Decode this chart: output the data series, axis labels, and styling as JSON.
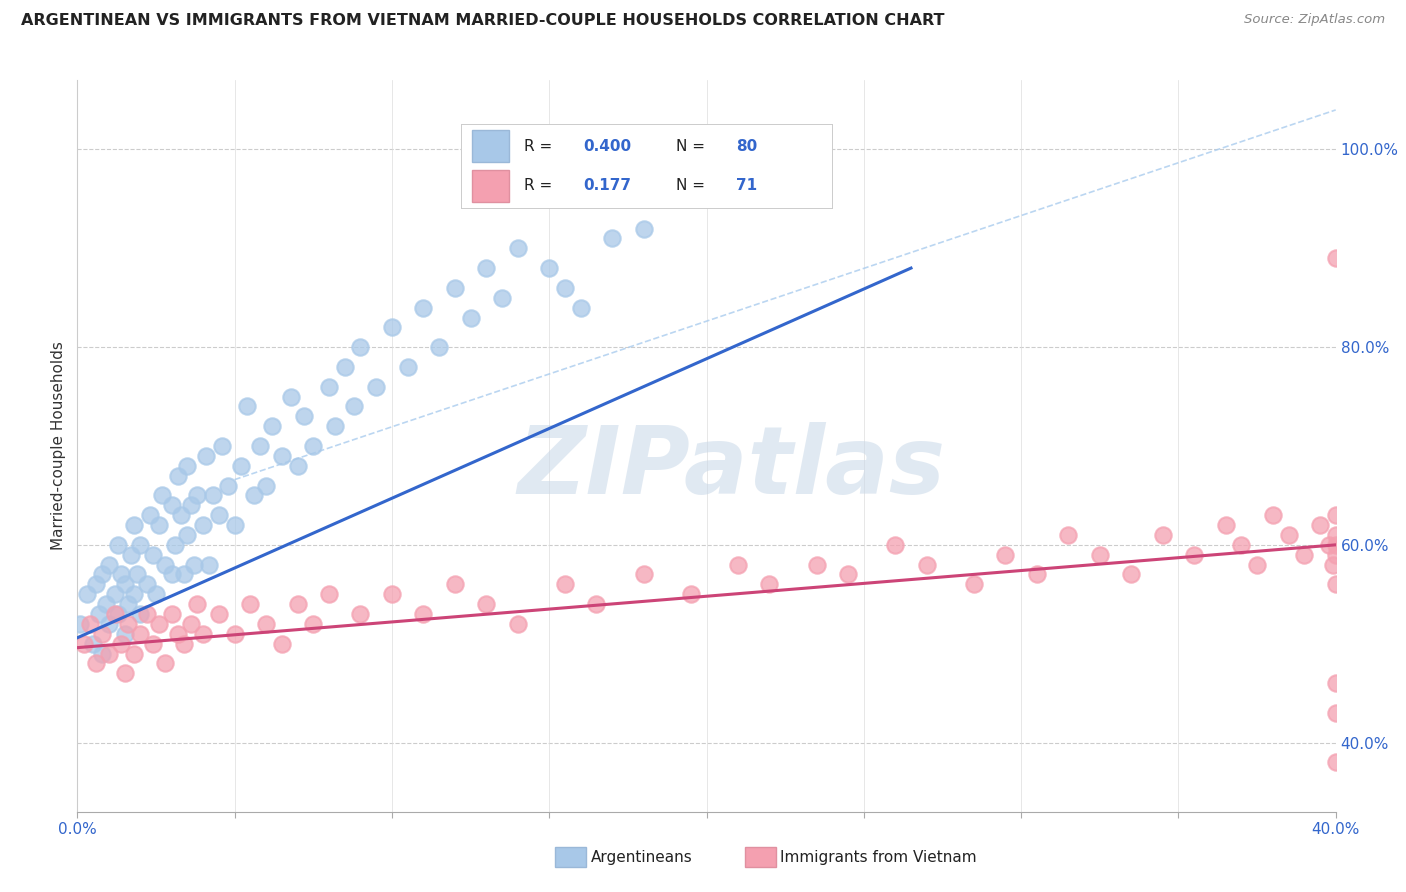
{
  "title": "ARGENTINEAN VS IMMIGRANTS FROM VIETNAM MARRIED-COUPLE HOUSEHOLDS CORRELATION CHART",
  "source": "Source: ZipAtlas.com",
  "ylabel": "Married-couple Households",
  "r1": 0.4,
  "n1": 80,
  "r2": 0.177,
  "n2": 71,
  "legend1": "Argentineans",
  "legend2": "Immigrants from Vietnam",
  "color1": "#a8c8e8",
  "color2": "#f4a0b0",
  "trendline1_color": "#3366cc",
  "trendline2_color": "#cc4477",
  "xlim": [
    0.0,
    0.4
  ],
  "ylim": [
    0.33,
    1.07
  ],
  "yright_ticks": [
    0.4,
    0.6,
    0.8,
    1.0
  ],
  "yright_labels": [
    "40.0%",
    "60.0%",
    "80.0%",
    "100.0%"
  ],
  "blue_scatter_x": [
    0.001,
    0.003,
    0.005,
    0.006,
    0.007,
    0.008,
    0.008,
    0.009,
    0.01,
    0.01,
    0.012,
    0.013,
    0.013,
    0.014,
    0.015,
    0.015,
    0.016,
    0.017,
    0.018,
    0.018,
    0.019,
    0.02,
    0.02,
    0.022,
    0.023,
    0.024,
    0.025,
    0.026,
    0.027,
    0.028,
    0.03,
    0.03,
    0.031,
    0.032,
    0.033,
    0.034,
    0.035,
    0.035,
    0.036,
    0.037,
    0.038,
    0.04,
    0.041,
    0.042,
    0.043,
    0.045,
    0.046,
    0.048,
    0.05,
    0.052,
    0.054,
    0.056,
    0.058,
    0.06,
    0.062,
    0.065,
    0.068,
    0.07,
    0.072,
    0.075,
    0.08,
    0.082,
    0.085,
    0.088,
    0.09,
    0.095,
    0.1,
    0.105,
    0.11,
    0.115,
    0.12,
    0.125,
    0.13,
    0.135,
    0.14,
    0.15,
    0.155,
    0.16,
    0.17,
    0.18
  ],
  "blue_scatter_y": [
    0.52,
    0.55,
    0.5,
    0.56,
    0.53,
    0.49,
    0.57,
    0.54,
    0.52,
    0.58,
    0.55,
    0.53,
    0.6,
    0.57,
    0.51,
    0.56,
    0.54,
    0.59,
    0.55,
    0.62,
    0.57,
    0.53,
    0.6,
    0.56,
    0.63,
    0.59,
    0.55,
    0.62,
    0.65,
    0.58,
    0.57,
    0.64,
    0.6,
    0.67,
    0.63,
    0.57,
    0.61,
    0.68,
    0.64,
    0.58,
    0.65,
    0.62,
    0.69,
    0.58,
    0.65,
    0.63,
    0.7,
    0.66,
    0.62,
    0.68,
    0.74,
    0.65,
    0.7,
    0.66,
    0.72,
    0.69,
    0.75,
    0.68,
    0.73,
    0.7,
    0.76,
    0.72,
    0.78,
    0.74,
    0.8,
    0.76,
    0.82,
    0.78,
    0.84,
    0.8,
    0.86,
    0.83,
    0.88,
    0.85,
    0.9,
    0.88,
    0.86,
    0.84,
    0.91,
    0.92
  ],
  "pink_scatter_x": [
    0.002,
    0.004,
    0.006,
    0.008,
    0.01,
    0.012,
    0.014,
    0.015,
    0.016,
    0.018,
    0.02,
    0.022,
    0.024,
    0.026,
    0.028,
    0.03,
    0.032,
    0.034,
    0.036,
    0.038,
    0.04,
    0.045,
    0.05,
    0.055,
    0.06,
    0.065,
    0.07,
    0.075,
    0.08,
    0.09,
    0.1,
    0.11,
    0.12,
    0.13,
    0.14,
    0.155,
    0.165,
    0.18,
    0.195,
    0.21,
    0.22,
    0.235,
    0.245,
    0.26,
    0.27,
    0.285,
    0.295,
    0.305,
    0.315,
    0.325,
    0.335,
    0.345,
    0.355,
    0.365,
    0.37,
    0.375,
    0.38,
    0.385,
    0.39,
    0.395,
    0.398,
    0.399,
    0.4,
    0.4,
    0.4,
    0.4,
    0.4,
    0.4,
    0.4,
    0.4,
    0.4
  ],
  "pink_scatter_y": [
    0.5,
    0.52,
    0.48,
    0.51,
    0.49,
    0.53,
    0.5,
    0.47,
    0.52,
    0.49,
    0.51,
    0.53,
    0.5,
    0.52,
    0.48,
    0.53,
    0.51,
    0.5,
    0.52,
    0.54,
    0.51,
    0.53,
    0.51,
    0.54,
    0.52,
    0.5,
    0.54,
    0.52,
    0.55,
    0.53,
    0.55,
    0.53,
    0.56,
    0.54,
    0.52,
    0.56,
    0.54,
    0.57,
    0.55,
    0.58,
    0.56,
    0.58,
    0.57,
    0.6,
    0.58,
    0.56,
    0.59,
    0.57,
    0.61,
    0.59,
    0.57,
    0.61,
    0.59,
    0.62,
    0.6,
    0.58,
    0.63,
    0.61,
    0.59,
    0.62,
    0.6,
    0.58,
    0.61,
    0.59,
    0.63,
    0.38,
    0.43,
    0.46,
    0.56,
    0.89,
    0.6
  ],
  "trendline1_x": [
    0.0,
    0.265
  ],
  "trendline1_y": [
    0.506,
    0.88
  ],
  "trendline2_x": [
    0.0,
    0.4
  ],
  "trendline2_y": [
    0.496,
    0.6
  ],
  "refline_x": [
    0.05,
    0.4
  ],
  "refline_y": [
    0.666,
    1.04
  ]
}
